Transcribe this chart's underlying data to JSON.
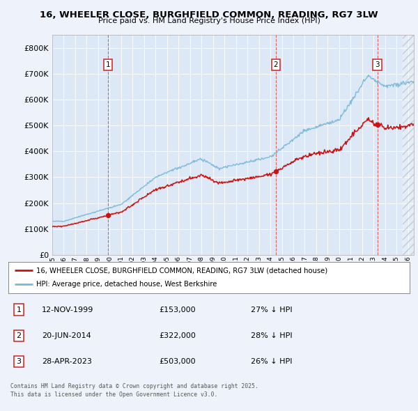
{
  "title_line1": "16, WHEELER CLOSE, BURGHFIELD COMMON, READING, RG7 3LW",
  "title_line2": "Price paid vs. HM Land Registry's House Price Index (HPI)",
  "background_color": "#eef2fb",
  "plot_bg_color": "#dce8f5",
  "hpi_color": "#7ab8d8",
  "price_color": "#cc1111",
  "sale1": {
    "date_num": 1999.87,
    "price": 153000,
    "label": "1"
  },
  "sale2": {
    "date_num": 2014.47,
    "price": 322000,
    "label": "2"
  },
  "sale3": {
    "date_num": 2023.32,
    "price": 503000,
    "label": "3"
  },
  "legend_entry1": "16, WHEELER CLOSE, BURGHFIELD COMMON, READING, RG7 3LW (detached house)",
  "legend_entry2": "HPI: Average price, detached house, West Berkshire",
  "table_rows": [
    {
      "num": "1",
      "date": "12-NOV-1999",
      "price": "£153,000",
      "pct": "27% ↓ HPI"
    },
    {
      "num": "2",
      "date": "20-JUN-2014",
      "price": "£322,000",
      "pct": "28% ↓ HPI"
    },
    {
      "num": "3",
      "date": "28-APR-2023",
      "price": "£503,000",
      "pct": "26% ↓ HPI"
    }
  ],
  "footnote": "Contains HM Land Registry data © Crown copyright and database right 2025.\nThis data is licensed under the Open Government Licence v3.0.",
  "xmin": 1995.0,
  "xmax": 2026.5,
  "ymin": 0,
  "ymax": 850000
}
